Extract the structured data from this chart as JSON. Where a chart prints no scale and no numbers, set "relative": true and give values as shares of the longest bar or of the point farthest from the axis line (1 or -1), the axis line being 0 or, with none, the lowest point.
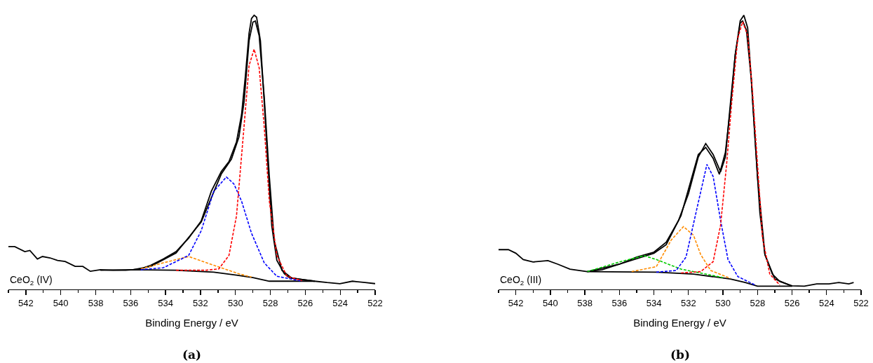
{
  "chart_data": [
    {
      "type": "line",
      "relative": true,
      "xlabel": "Binding Energy / eV",
      "xlim": [
        543,
        522
      ],
      "xticks": [
        542,
        540,
        538,
        536,
        534,
        532,
        530,
        528,
        526,
        524,
        522
      ],
      "grid": false,
      "marker": "none",
      "annotations": [
        "CeO$_{2}$ (IV)",
        "(a)"
      ],
      "series": [
        {
          "color": "#ff8c00",
          "line_style": "dashed",
          "x": [
            535.42,
            534.13,
            532.68,
            531.24,
            529.8,
            529.08
          ],
          "values": [
            0.075,
            0.097,
            0.12,
            0.088,
            0.057,
            0.045
          ]
        },
        {
          "color": "#0000ff",
          "line_style": "dashed",
          "x": [
            535.42,
            534.13,
            532.68,
            531.96,
            531.24,
            530.52,
            530.09,
            529.65,
            529.08,
            528.35,
            527.63,
            526.19
          ],
          "values": [
            0.072,
            0.079,
            0.124,
            0.214,
            0.358,
            0.41,
            0.385,
            0.322,
            0.205,
            0.097,
            0.048,
            0.03
          ]
        },
        {
          "color": "#ff0000",
          "line_style": "dashed",
          "x": [
            533.4,
            531.67,
            530.95,
            530.37,
            529.94,
            529.51,
            529.22,
            528.93,
            528.64,
            528.35,
            528.06,
            527.63,
            527.05,
            526.19
          ],
          "values": [
            0.07,
            0.07,
            0.075,
            0.124,
            0.268,
            0.592,
            0.817,
            0.876,
            0.808,
            0.592,
            0.322,
            0.124,
            0.048,
            0.032
          ]
        },
        {
          "color": "#000000",
          "line_style": "solid",
          "x": [
            537.73,
            535.86,
            533.4,
            531.24,
            529.94,
            529.0,
            528.06,
            527.05,
            526.19,
            525.47
          ],
          "values": [
            0.07,
            0.072,
            0.07,
            0.063,
            0.052,
            0.043,
            0.03,
            0.03,
            0.03,
            0.03
          ]
        },
        {
          "color": "#000000",
          "line_style": "solid",
          "x": [
            535.86,
            534.85,
            533.4,
            531.96,
            530.81,
            530.23,
            529.8,
            529.51,
            529.22,
            529.0,
            528.86,
            528.64,
            528.35,
            528.06,
            527.78,
            527.34,
            526.77,
            525.47
          ],
          "values": [
            0.072,
            0.084,
            0.133,
            0.246,
            0.421,
            0.475,
            0.556,
            0.682,
            0.907,
            0.975,
            0.979,
            0.925,
            0.7,
            0.412,
            0.178,
            0.07,
            0.041,
            0.03
          ]
        },
        {
          "color": "#000000",
          "line_style": "solid",
          "x": [
            543.0,
            542.64,
            542.06,
            541.77,
            541.34,
            541.05,
            540.62,
            540.19,
            539.75,
            539.18,
            538.74,
            538.31,
            537.73,
            537.01,
            536.29,
            535.86,
            535.42,
            534.85,
            534.13,
            533.4,
            532.68,
            531.96,
            531.38,
            530.81,
            530.37,
            529.94,
            529.65,
            529.44,
            529.22,
            529.08,
            528.93,
            528.79,
            528.57,
            528.35,
            528.14,
            527.92,
            527.63,
            527.2,
            526.91,
            526.19,
            525.47,
            524.75,
            524.02,
            523.3,
            522.58,
            522.0
          ],
          "values": [
            0.156,
            0.156,
            0.138,
            0.142,
            0.111,
            0.12,
            0.115,
            0.106,
            0.102,
            0.084,
            0.084,
            0.066,
            0.072,
            0.07,
            0.07,
            0.072,
            0.075,
            0.088,
            0.111,
            0.138,
            0.187,
            0.25,
            0.358,
            0.43,
            0.466,
            0.538,
            0.637,
            0.772,
            0.934,
            0.988,
            1.0,
            0.993,
            0.907,
            0.682,
            0.457,
            0.232,
            0.106,
            0.057,
            0.043,
            0.036,
            0.03,
            0.025,
            0.021,
            0.03,
            0.025,
            0.021
          ]
        }
      ]
    },
    {
      "type": "line",
      "relative": true,
      "xlabel": "Binding Energy / eV",
      "xlim": [
        543,
        522
      ],
      "xticks": [
        542,
        540,
        538,
        536,
        534,
        532,
        530,
        528,
        526,
        524,
        522
      ],
      "grid": false,
      "marker": "none",
      "annotations": [
        "CeO$_{2}$ (III)",
        "(b)"
      ],
      "series": [
        {
          "color": "#00cc00",
          "line_style": "dashed",
          "x": [
            537.86,
            536.0,
            534.57,
            533.86,
            532.43,
            531.0,
            530.0
          ],
          "values": [
            0.065,
            0.1,
            0.123,
            0.109,
            0.074,
            0.056,
            0.043
          ]
        },
        {
          "color": "#ff8c00",
          "line_style": "dashed",
          "x": [
            535.29,
            533.86,
            533.0,
            532.29,
            531.71,
            531.29,
            530.71,
            529.57
          ],
          "values": [
            0.065,
            0.083,
            0.18,
            0.229,
            0.198,
            0.127,
            0.069,
            0.04
          ]
        },
        {
          "color": "#0000ff",
          "line_style": "dashed",
          "x": [
            533.86,
            532.71,
            532.14,
            531.57,
            530.93,
            530.57,
            530.14,
            529.71,
            529.14,
            528.14
          ],
          "values": [
            0.063,
            0.069,
            0.118,
            0.278,
            0.456,
            0.412,
            0.252,
            0.109,
            0.047,
            0.016
          ]
        },
        {
          "color": "#ff0000",
          "line_style": "dashed",
          "x": [
            532.43,
            531.29,
            530.57,
            530.14,
            529.79,
            529.5,
            529.14,
            528.86,
            528.57,
            528.29,
            528.0,
            527.71,
            527.29,
            526.71
          ],
          "values": [
            0.06,
            0.065,
            0.101,
            0.234,
            0.456,
            0.678,
            0.918,
            0.976,
            0.927,
            0.723,
            0.456,
            0.189,
            0.056,
            0.016
          ]
        },
        {
          "color": "#000000",
          "line_style": "solid",
          "x": [
            537.86,
            533.86,
            531.71,
            529.57,
            528.71,
            528.0,
            526.0
          ],
          "values": [
            0.065,
            0.063,
            0.056,
            0.038,
            0.025,
            0.012,
            0.012
          ]
        },
        {
          "color": "#000000",
          "line_style": "solid",
          "x": [
            537.86,
            536.0,
            534.0,
            533.29,
            532.43,
            531.43,
            531.0,
            530.57,
            530.21,
            529.86,
            529.57,
            529.29,
            529.0,
            528.86,
            528.64,
            528.36,
            528.0,
            527.57,
            527.0,
            526.0
          ],
          "values": [
            0.065,
            0.092,
            0.132,
            0.163,
            0.269,
            0.492,
            0.518,
            0.478,
            0.42,
            0.5,
            0.66,
            0.856,
            0.972,
            0.979,
            0.945,
            0.767,
            0.412,
            0.127,
            0.038,
            0.012
          ]
        },
        {
          "color": "#000000",
          "line_style": "solid",
          "x": [
            543.0,
            542.43,
            542.0,
            541.57,
            541.0,
            540.14,
            539.57,
            538.86,
            537.86,
            537.0,
            536.0,
            535.0,
            534.0,
            533.29,
            532.57,
            532.0,
            531.43,
            531.0,
            530.57,
            530.14,
            529.86,
            529.57,
            529.29,
            529.0,
            528.79,
            528.57,
            528.36,
            528.14,
            527.86,
            527.57,
            527.14,
            526.71,
            526.0,
            525.29,
            524.57,
            523.86,
            523.29,
            522.71,
            522.43
          ],
          "values": [
            0.145,
            0.145,
            0.132,
            0.109,
            0.1,
            0.105,
            0.092,
            0.074,
            0.065,
            0.072,
            0.092,
            0.118,
            0.136,
            0.172,
            0.252,
            0.349,
            0.483,
            0.532,
            0.492,
            0.429,
            0.483,
            0.678,
            0.856,
            0.98,
            1.0,
            0.954,
            0.767,
            0.545,
            0.278,
            0.127,
            0.056,
            0.029,
            0.013,
            0.012,
            0.02,
            0.02,
            0.025,
            0.02,
            0.025
          ]
        }
      ]
    }
  ]
}
